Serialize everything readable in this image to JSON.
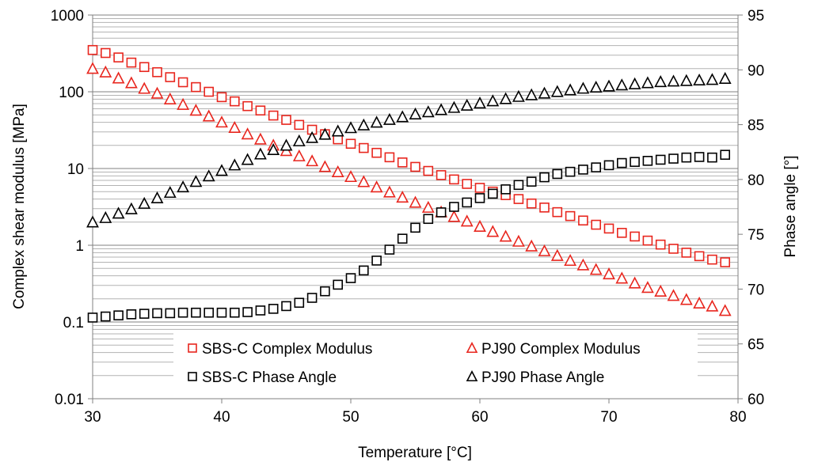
{
  "chart_data": {
    "type": "scatter",
    "title": "",
    "xlabel": "Temperature [°C]",
    "ylabel": "Complex shear modulus [MPa]",
    "y2label": "Phase angle [°]",
    "xlim": [
      30,
      80
    ],
    "ylim": [
      0.01,
      1000
    ],
    "y2lim": [
      60,
      95
    ],
    "yscale": "log",
    "grid": "horizontal",
    "legend": "bottom-center inside",
    "x_ticks": [
      "30",
      "40",
      "50",
      "60",
      "70",
      "80"
    ],
    "y_ticks": [
      "0.01",
      "0.1",
      "1",
      "10",
      "100",
      "1000"
    ],
    "y2_ticks": [
      "60",
      "65",
      "70",
      "75",
      "80",
      "85",
      "90",
      "95"
    ],
    "series": [
      {
        "name": "SBS-C Complex Modulus",
        "axis": "left",
        "marker": "square",
        "color": "#e8261e",
        "x": [
          30,
          31,
          32,
          33,
          34,
          35,
          36,
          37,
          38,
          39,
          40,
          41,
          42,
          43,
          44,
          45,
          46,
          47,
          48,
          49,
          50,
          51,
          52,
          53,
          54,
          55,
          56,
          57,
          58,
          59,
          60,
          61,
          62,
          63,
          64,
          65,
          66,
          67,
          68,
          69,
          70,
          71,
          72,
          73,
          74,
          75,
          76,
          77,
          78,
          79
        ],
        "y": [
          350,
          320,
          280,
          240,
          210,
          180,
          155,
          133,
          115,
          100,
          85,
          75,
          65,
          57,
          49,
          43,
          37,
          32,
          28,
          24,
          21,
          18.5,
          16,
          14,
          12,
          10.5,
          9.3,
          8.2,
          7.2,
          6.3,
          5.6,
          5,
          4.5,
          4,
          3.5,
          3.1,
          2.7,
          2.4,
          2.1,
          1.85,
          1.65,
          1.45,
          1.3,
          1.15,
          1.02,
          0.9,
          0.8,
          0.72,
          0.65,
          0.6
        ]
      },
      {
        "name": "PJ90 Complex Modulus",
        "axis": "left",
        "marker": "triangle",
        "color": "#e8261e",
        "x": [
          30,
          31,
          32,
          33,
          34,
          35,
          36,
          37,
          38,
          39,
          40,
          41,
          42,
          43,
          44,
          45,
          46,
          47,
          48,
          49,
          50,
          51,
          52,
          53,
          54,
          55,
          56,
          57,
          58,
          59,
          60,
          61,
          62,
          63,
          64,
          65,
          66,
          67,
          68,
          69,
          70,
          71,
          72,
          73,
          74,
          75,
          76,
          77,
          78,
          79
        ],
        "y": [
          200,
          180,
          150,
          130,
          110,
          95,
          80,
          68,
          57,
          48,
          40,
          34,
          28,
          24,
          20,
          17,
          14.5,
          12.5,
          10.5,
          9,
          7.8,
          6.7,
          5.7,
          4.9,
          4.2,
          3.6,
          3.1,
          2.7,
          2.35,
          2.05,
          1.75,
          1.5,
          1.3,
          1.12,
          0.97,
          0.84,
          0.73,
          0.63,
          0.55,
          0.48,
          0.42,
          0.37,
          0.32,
          0.28,
          0.25,
          0.22,
          0.195,
          0.175,
          0.16,
          0.14
        ]
      },
      {
        "name": "SBS-C Phase Angle",
        "axis": "right",
        "marker": "square",
        "color": "#000000",
        "x": [
          30,
          31,
          32,
          33,
          34,
          35,
          36,
          37,
          38,
          39,
          40,
          41,
          42,
          43,
          44,
          45,
          46,
          47,
          48,
          49,
          50,
          51,
          52,
          53,
          54,
          55,
          56,
          57,
          58,
          59,
          60,
          61,
          62,
          63,
          64,
          65,
          66,
          67,
          68,
          69,
          70,
          71,
          72,
          73,
          74,
          75,
          76,
          77,
          78,
          79
        ],
        "y": [
          67.4,
          67.5,
          67.6,
          67.7,
          67.75,
          67.8,
          67.8,
          67.85,
          67.85,
          67.85,
          67.85,
          67.85,
          67.9,
          68.05,
          68.2,
          68.45,
          68.75,
          69.2,
          69.8,
          70.4,
          71.0,
          71.7,
          72.6,
          73.6,
          74.6,
          75.6,
          76.4,
          77.0,
          77.5,
          77.9,
          78.3,
          78.7,
          79.1,
          79.5,
          79.8,
          80.2,
          80.5,
          80.7,
          80.9,
          81.1,
          81.3,
          81.5,
          81.6,
          81.7,
          81.8,
          81.9,
          82.0,
          82.05,
          82.0,
          82.25
        ]
      },
      {
        "name": "PJ90 Phase Angle",
        "axis": "right",
        "marker": "triangle",
        "color": "#000000",
        "x": [
          30,
          31,
          32,
          33,
          34,
          35,
          36,
          37,
          38,
          39,
          40,
          41,
          42,
          43,
          44,
          45,
          46,
          47,
          48,
          49,
          50,
          51,
          52,
          53,
          54,
          55,
          56,
          57,
          58,
          59,
          60,
          61,
          62,
          63,
          64,
          65,
          66,
          67,
          68,
          69,
          70,
          71,
          72,
          73,
          74,
          75,
          76,
          77,
          78,
          79
        ],
        "y": [
          76.1,
          76.5,
          76.9,
          77.3,
          77.8,
          78.3,
          78.8,
          79.3,
          79.8,
          80.3,
          80.8,
          81.3,
          81.8,
          82.3,
          82.7,
          83.1,
          83.5,
          83.8,
          84.1,
          84.4,
          84.7,
          84.95,
          85.2,
          85.45,
          85.7,
          85.95,
          86.15,
          86.35,
          86.55,
          86.75,
          86.95,
          87.15,
          87.35,
          87.55,
          87.7,
          87.85,
          88.0,
          88.15,
          88.3,
          88.4,
          88.5,
          88.6,
          88.7,
          88.8,
          88.9,
          88.95,
          89.0,
          89.05,
          89.1,
          89.2
        ]
      }
    ]
  }
}
